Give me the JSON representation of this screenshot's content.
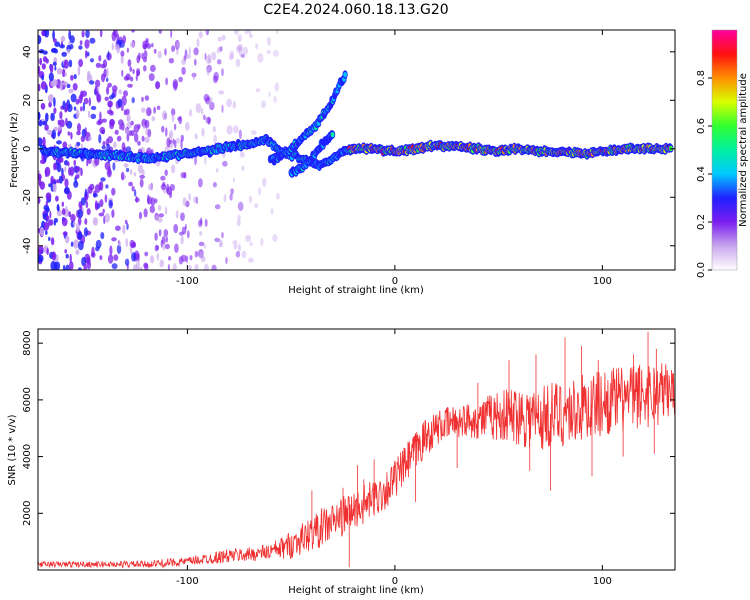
{
  "title": "C2E4.2024.060.18.13.G20",
  "chart_data": [
    {
      "type": "heatmap",
      "xlabel": "Height of straight line (km)",
      "ylabel": "Frequency (Hz)",
      "xlim": [
        -172,
        135
      ],
      "ylim": [
        -50,
        49
      ],
      "xticks": [
        -100,
        0,
        100
      ],
      "yticks": [
        -40,
        -20,
        0,
        20,
        40
      ],
      "colorbar": {
        "label": "Normalized spectral amplitude",
        "range": [
          0,
          1
        ],
        "ticks": [
          0.0,
          0.2,
          0.4,
          0.6,
          0.8
        ],
        "colors": [
          "#ffffff",
          "#c9a6ee",
          "#7a1ef0",
          "#2020ff",
          "#00c8ff",
          "#00f0a0",
          "#30ff30",
          "#d8ff00",
          "#ff9000",
          "#ff1010",
          "#ff00a0"
        ]
      },
      "series": [
        {
          "points": [
            [
              -170,
              -1
            ],
            [
              -150,
              -2
            ],
            [
              -130,
              -3
            ],
            [
              -120,
              -4
            ],
            [
              -110,
              -3
            ],
            [
              -100,
              -2
            ],
            [
              -90,
              -1
            ],
            [
              -80,
              1
            ],
            [
              -70,
              2
            ],
            [
              -62,
              4
            ],
            [
              -55,
              -1
            ],
            [
              -48,
              -3
            ],
            [
              -42,
              -5
            ],
            [
              -36,
              -7
            ],
            [
              -30,
              -4
            ],
            [
              -25,
              -1
            ],
            [
              -20,
              0
            ],
            [
              -10,
              0
            ],
            [
              0,
              -1
            ],
            [
              10,
              0
            ],
            [
              20,
              1
            ],
            [
              30,
              1
            ],
            [
              40,
              0
            ],
            [
              50,
              -1
            ],
            [
              60,
              0
            ],
            [
              70,
              -1
            ],
            [
              80,
              -1
            ],
            [
              90,
              -2
            ],
            [
              100,
              -1
            ],
            [
              110,
              0
            ],
            [
              120,
              0
            ],
            [
              133,
              0
            ]
          ]
        },
        {
          "points": [
            [
              -60,
              -5
            ],
            [
              -55,
              -3
            ],
            [
              -50,
              0
            ],
            [
              -45,
              4
            ],
            [
              -40,
              8
            ],
            [
              -36,
              12
            ],
            [
              -32,
              17
            ],
            [
              -29,
              22
            ],
            [
              -26,
              27
            ],
            [
              -24,
              30
            ]
          ]
        },
        {
          "points": [
            [
              -50,
              -10
            ],
            [
              -45,
              -8
            ],
            [
              -40,
              -4
            ],
            [
              -35,
              2
            ],
            [
              -30,
              6
            ]
          ]
        }
      ]
    },
    {
      "type": "line",
      "xlabel": "Height of straight line (km)",
      "ylabel": "SNR (10 * v/v)",
      "xlim": [
        -172,
        135
      ],
      "ylim": [
        0,
        8500
      ],
      "xticks": [
        -100,
        0,
        100
      ],
      "yticks": [
        2000,
        4000,
        6000,
        8000
      ],
      "color": "#f03030",
      "x": [
        -170,
        -160,
        -150,
        -140,
        -130,
        -120,
        -110,
        -100,
        -90,
        -80,
        -70,
        -60,
        -55,
        -50,
        -45,
        -40,
        -35,
        -30,
        -25,
        -20,
        -15,
        -10,
        -5,
        0,
        5,
        10,
        15,
        20,
        25,
        30,
        35,
        40,
        45,
        50,
        55,
        60,
        65,
        70,
        75,
        80,
        85,
        90,
        95,
        100,
        105,
        110,
        115,
        120,
        125,
        130,
        135
      ],
      "y": [
        200,
        200,
        200,
        200,
        200,
        200,
        250,
        300,
        400,
        500,
        550,
        650,
        750,
        900,
        1100,
        1300,
        1500,
        1700,
        1900,
        2100,
        2300,
        2500,
        2800,
        3200,
        3700,
        4200,
        4700,
        5000,
        5150,
        5250,
        5300,
        5300,
        5400,
        5450,
        5450,
        5500,
        5400,
        5300,
        5500,
        5500,
        5600,
        5700,
        5800,
        5900,
        6000,
        6000,
        6100,
        6200,
        6200,
        6300,
        6300
      ],
      "spread": [
        100,
        100,
        100,
        100,
        120,
        120,
        150,
        150,
        200,
        250,
        250,
        300,
        400,
        500,
        550,
        600,
        700,
        700,
        700,
        700,
        700,
        700,
        700,
        700,
        700,
        700,
        700,
        600,
        600,
        600,
        600,
        700,
        800,
        900,
        1000,
        1100,
        1200,
        1200,
        1200,
        1200,
        1200,
        1200,
        1200,
        1200,
        1200,
        1200,
        1200,
        1200,
        1200,
        1100,
        1000
      ],
      "spikes": [
        [
          -40,
          2800
        ],
        [
          -25,
          2900
        ],
        [
          -18,
          3700
        ],
        [
          -15,
          3200
        ],
        [
          -10,
          3900
        ],
        [
          5,
          4200
        ],
        [
          15,
          4800
        ],
        [
          40,
          6600
        ],
        [
          55,
          7400
        ],
        [
          68,
          7600
        ],
        [
          82,
          8200
        ],
        [
          90,
          7900
        ],
        [
          98,
          7400
        ],
        [
          115,
          7600
        ],
        [
          122,
          8400
        ],
        [
          126,
          7800
        ]
      ],
      "dips": [
        [
          -22,
          100
        ],
        [
          10,
          2400
        ],
        [
          30,
          3600
        ],
        [
          65,
          3500
        ],
        [
          75,
          2800
        ],
        [
          95,
          3300
        ],
        [
          110,
          4000
        ],
        [
          125,
          4100
        ]
      ]
    }
  ]
}
